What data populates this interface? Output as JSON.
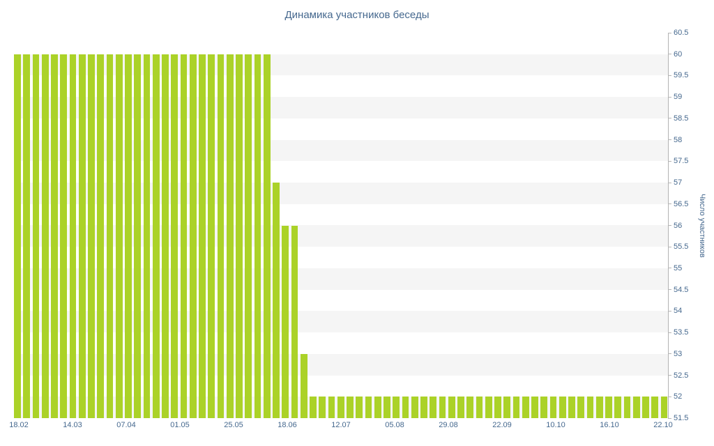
{
  "chart_data": {
    "type": "bar",
    "title": "Динамика участников беседы",
    "ylabel": "Число участников",
    "xlabel": "",
    "ylim": [
      51.5,
      60.5
    ],
    "y_tick_step": 0.5,
    "y_tick_labels": [
      "60.5",
      "60",
      "59.5",
      "59",
      "58.5",
      "58",
      "57.5",
      "57",
      "56.5",
      "56",
      "55.5",
      "55",
      "54.5",
      "54",
      "53.5",
      "53",
      "52.5",
      "52",
      "51.5"
    ],
    "x_tick_labels": [
      "18.02",
      "14.03",
      "07.04",
      "01.05",
      "25.05",
      "18.06",
      "12.07",
      "05.08",
      "29.08",
      "22.09",
      "10.10",
      "16.10",
      "22.10"
    ],
    "values": [
      60,
      60,
      60,
      60,
      60,
      60,
      60,
      60,
      60,
      60,
      60,
      60,
      60,
      60,
      60,
      60,
      60,
      60,
      60,
      60,
      60,
      60,
      60,
      60,
      60,
      60,
      60,
      60,
      57,
      56,
      56,
      53,
      52,
      52,
      52,
      52,
      52,
      52,
      52,
      52,
      52,
      52,
      52,
      52,
      52,
      52,
      52,
      52,
      52,
      52,
      52,
      52,
      52,
      52,
      52,
      52,
      52,
      52,
      52,
      52,
      52,
      52,
      52,
      52,
      52,
      52,
      52,
      52,
      52,
      52,
      52
    ],
    "grid": "alternating-horizontal-bands",
    "legend": "off",
    "colors": {
      "bar": "#abd228",
      "band": "#f5f5f5",
      "text": "#45688e",
      "axis": "#b3b3b3"
    }
  }
}
